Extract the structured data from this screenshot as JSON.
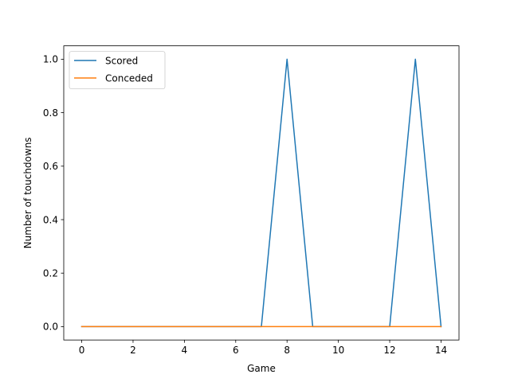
{
  "chart_data": {
    "type": "line",
    "title": "",
    "xlabel": "Game",
    "ylabel": "Number of touchdowns",
    "x": [
      0,
      1,
      2,
      3,
      4,
      5,
      6,
      7,
      8,
      9,
      10,
      11,
      12,
      13,
      14
    ],
    "xlim": [
      -0.7,
      14.7
    ],
    "ylim": [
      -0.05,
      1.05
    ],
    "xticks": [
      0,
      2,
      4,
      6,
      8,
      10,
      12,
      14
    ],
    "yticks": [
      0.0,
      0.2,
      0.4,
      0.6,
      0.8,
      1.0
    ],
    "xtick_labels": [
      "0",
      "2",
      "4",
      "6",
      "8",
      "10",
      "12",
      "14"
    ],
    "ytick_labels": [
      "0.0",
      "0.2",
      "0.4",
      "0.6",
      "0.8",
      "1.0"
    ],
    "grid": false,
    "legend_position": "top-left",
    "series": [
      {
        "name": "Scored",
        "color": "#1f77b4",
        "values": [
          0,
          0,
          0,
          0,
          0,
          0,
          0,
          0,
          1,
          0,
          0,
          0,
          0,
          1,
          0
        ]
      },
      {
        "name": "Conceded",
        "color": "#ff7f0e",
        "values": [
          0,
          0,
          0,
          0,
          0,
          0,
          0,
          0,
          0,
          0,
          0,
          0,
          0,
          0,
          0
        ]
      }
    ]
  }
}
